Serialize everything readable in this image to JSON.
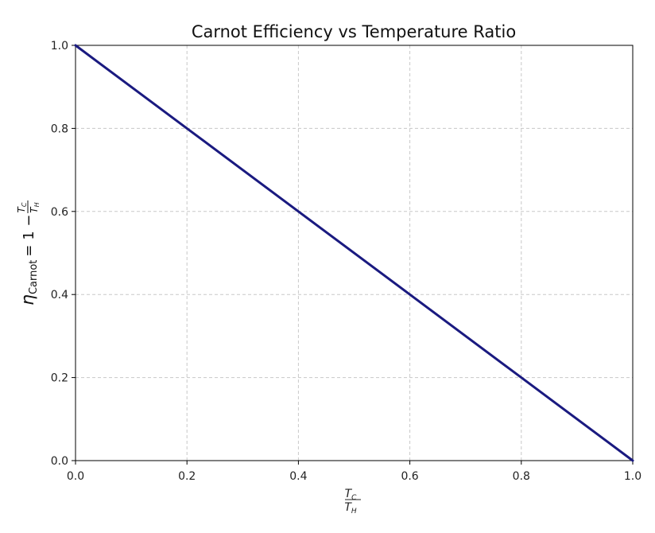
{
  "chart_data": {
    "type": "line",
    "title": "Carnot Efficiency vs Temperature Ratio",
    "xlabel": {
      "numerator": "T",
      "numerator_sub": "C",
      "denominator": "T",
      "denominator_sub": "H"
    },
    "ylabel": {
      "symbol": "η",
      "symbol_sub": "Carnot",
      "expression": "= 1 −",
      "numerator": "T",
      "numerator_sub": "C",
      "denominator": "T",
      "denominator_sub": "H"
    },
    "xlim": [
      0.0,
      1.0
    ],
    "ylim": [
      0.0,
      1.0
    ],
    "xticks": [
      "0.0",
      "0.2",
      "0.4",
      "0.6",
      "0.8",
      "1.0"
    ],
    "yticks": [
      "0.0",
      "0.2",
      "0.4",
      "0.6",
      "0.8",
      "1.0"
    ],
    "grid": true,
    "series": [
      {
        "color": "#1a1a80",
        "x": [
          0.0,
          0.2,
          0.4,
          0.6,
          0.8,
          1.0
        ],
        "y": [
          1.0,
          0.8,
          0.6,
          0.4,
          0.2,
          0.0
        ]
      }
    ]
  }
}
